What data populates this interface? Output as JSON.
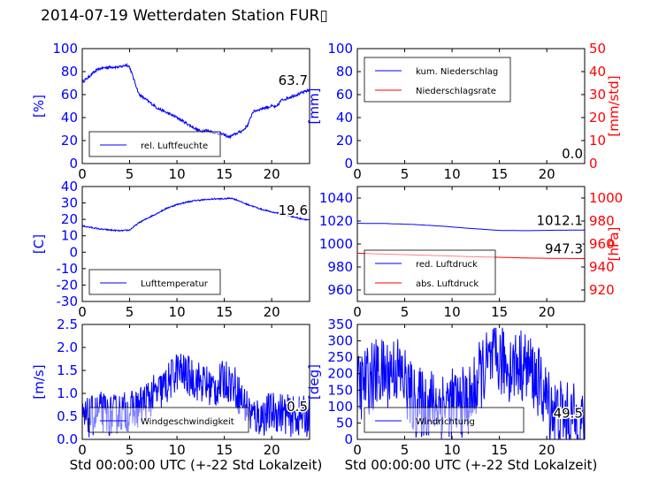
{
  "title": "2014-07-19 Wetterdaten Station FUR▯",
  "xlabel": "Std 00:00:00 UTC (+-22 Std Lokalzeit)",
  "colors": {
    "blue": "#0000ff",
    "red": "#ff0000",
    "black": "#000000"
  },
  "chart_data": [
    {
      "type": "line",
      "ylabel": "[%]",
      "xlim": [
        0,
        24
      ],
      "xticks": [
        0,
        5,
        10,
        15,
        20
      ],
      "ylim": [
        0,
        100
      ],
      "yticks": [
        0,
        20,
        40,
        60,
        80,
        100
      ],
      "legend_position": "lower-left",
      "series": [
        {
          "name": "rel. Luftfeuchte",
          "color": "#0000ff",
          "noise": 1.2,
          "x": [
            0,
            0.5,
            1,
            1.5,
            2,
            3,
            4,
            4.7,
            5,
            5.5,
            6,
            7,
            8,
            9,
            10,
            11,
            12,
            12.5,
            13,
            14,
            15,
            15.5,
            16,
            16.5,
            17,
            17.5,
            18,
            19,
            20,
            20.5,
            21,
            22,
            23,
            24
          ],
          "y": [
            71,
            74,
            78,
            81,
            83,
            84,
            84,
            86,
            84,
            72,
            60,
            54,
            48,
            44,
            40,
            35,
            30,
            28,
            29,
            27,
            25,
            23,
            25,
            27,
            29,
            34,
            45,
            48,
            50,
            49,
            55,
            58,
            61,
            64
          ]
        }
      ],
      "annotations": [
        "63.7"
      ]
    },
    {
      "type": "line",
      "ylabel": "[mm]",
      "y2label": "[mm/std]",
      "xlim": [
        0,
        24
      ],
      "xticks": [
        0,
        5,
        10,
        15,
        20
      ],
      "ylim": [
        0,
        100
      ],
      "yticks": [
        0,
        20,
        40,
        60,
        80,
        100
      ],
      "y2lim": [
        0,
        50
      ],
      "y2ticks": [
        0,
        10,
        20,
        30,
        40,
        50
      ],
      "legend_position": "top-left",
      "series": [
        {
          "name": "kum. Niederschlag",
          "color": "#0000ff",
          "axis": "left",
          "noise": 0,
          "x": [
            0,
            24
          ],
          "y": [
            0,
            0
          ]
        },
        {
          "name": "Niederschlagsrate",
          "color": "#ff0000",
          "axis": "right",
          "noise": 0,
          "x": [
            0,
            24
          ],
          "y": [
            0,
            0
          ]
        }
      ],
      "annotations": [
        "0.0",
        "0.0"
      ]
    },
    {
      "type": "line",
      "ylabel": "[C]",
      "xlim": [
        0,
        24
      ],
      "xticks": [
        0,
        5,
        10,
        15,
        20
      ],
      "ylim": [
        -30,
        40
      ],
      "yticks": [
        -30,
        -20,
        -10,
        0,
        10,
        20,
        30,
        40
      ],
      "legend_position": "lower-left",
      "series": [
        {
          "name": "Lufttemperatur",
          "color": "#0000ff",
          "noise": 0.4,
          "x": [
            0,
            1,
            2,
            3,
            4,
            5,
            6,
            7,
            8,
            9,
            10,
            11,
            12,
            13,
            14,
            15,
            15.7,
            16.5,
            17,
            18,
            19,
            20,
            21,
            22,
            23,
            24
          ],
          "y": [
            16,
            15,
            14,
            13.5,
            13,
            13.5,
            18,
            21,
            24,
            27,
            29,
            30.5,
            31.5,
            32,
            32.5,
            32.5,
            33,
            31.5,
            30,
            28,
            26,
            24.5,
            23.5,
            22,
            20.5,
            19.6
          ]
        }
      ],
      "annotations": [
        "19.6"
      ]
    },
    {
      "type": "line",
      "ylabel": "",
      "y2label": "[hPa]",
      "xlim": [
        0,
        24
      ],
      "xticks": [
        0,
        5,
        10,
        15,
        20
      ],
      "ylim": [
        950,
        1050
      ],
      "yticks": [
        960,
        980,
        1000,
        1020,
        1040
      ],
      "y2lim": [
        910,
        1010
      ],
      "y2ticks": [
        920,
        940,
        960,
        980,
        1000
      ],
      "legend_position": "lower-left",
      "series": [
        {
          "name": "red. Luftdruck",
          "color": "#0000ff",
          "axis": "left",
          "noise": 0,
          "x": [
            0,
            3,
            6,
            9,
            12,
            15,
            18,
            21,
            24
          ],
          "y": [
            1018,
            1017.8,
            1017,
            1015.5,
            1013.5,
            1011.8,
            1011.6,
            1012,
            1012.1
          ]
        },
        {
          "name": "abs. Luftdruck",
          "color": "#ff0000",
          "axis": "right",
          "noise": 0,
          "x": [
            0,
            3,
            6,
            9,
            12,
            15,
            18,
            21,
            24
          ],
          "y": [
            952,
            951.2,
            950.5,
            949.8,
            949,
            948.4,
            947.8,
            947.5,
            947.3
          ]
        }
      ],
      "annotations": [
        "1012.1",
        "947.3"
      ]
    },
    {
      "type": "line",
      "ylabel": "[m/s]",
      "xlim": [
        0,
        24
      ],
      "xticks": [
        0,
        5,
        10,
        15,
        20
      ],
      "ylim": [
        0,
        2.5
      ],
      "yticks": [
        0.0,
        0.5,
        1.0,
        1.5,
        2.0,
        2.5
      ],
      "legend_position": "lower-center",
      "series": [
        {
          "name": "Windgeschwindigkeit",
          "color": "#0000ff",
          "noise": 0.45,
          "x": [
            0,
            1,
            2,
            3,
            4,
            5,
            6,
            7,
            8,
            9,
            10,
            11,
            12,
            13,
            14,
            15,
            16,
            17,
            18,
            19,
            20,
            21,
            22,
            23,
            24
          ],
          "y": [
            0.4,
            0.5,
            0.6,
            0.5,
            0.6,
            0.6,
            0.7,
            0.9,
            1.0,
            1.2,
            1.5,
            1.4,
            1.3,
            1.2,
            1.1,
            1.3,
            1.2,
            0.8,
            0.5,
            0.5,
            0.6,
            0.6,
            0.5,
            0.5,
            0.5
          ]
        }
      ],
      "annotations": [
        "0.5"
      ]
    },
    {
      "type": "line",
      "ylabel": "[deg]",
      "xlim": [
        0,
        24
      ],
      "xticks": [
        0,
        5,
        10,
        15,
        20
      ],
      "ylim": [
        0,
        350
      ],
      "yticks": [
        0,
        50,
        100,
        150,
        200,
        250,
        300,
        350
      ],
      "legend_position": "lower-center",
      "series": [
        {
          "name": "Windrichtung",
          "color": "#0000ff",
          "noise": 110,
          "x": [
            0,
            1,
            2,
            3,
            4,
            5,
            6,
            7,
            8,
            9,
            10,
            11,
            12,
            13,
            14,
            15,
            16,
            17,
            18,
            19,
            20,
            21,
            22,
            23,
            24
          ],
          "y": [
            150,
            180,
            200,
            200,
            220,
            180,
            110,
            110,
            110,
            110,
            110,
            110,
            120,
            200,
            230,
            240,
            220,
            230,
            220,
            180,
            120,
            80,
            70,
            60,
            50
          ]
        }
      ],
      "annotations": [
        "49.5"
      ]
    }
  ]
}
